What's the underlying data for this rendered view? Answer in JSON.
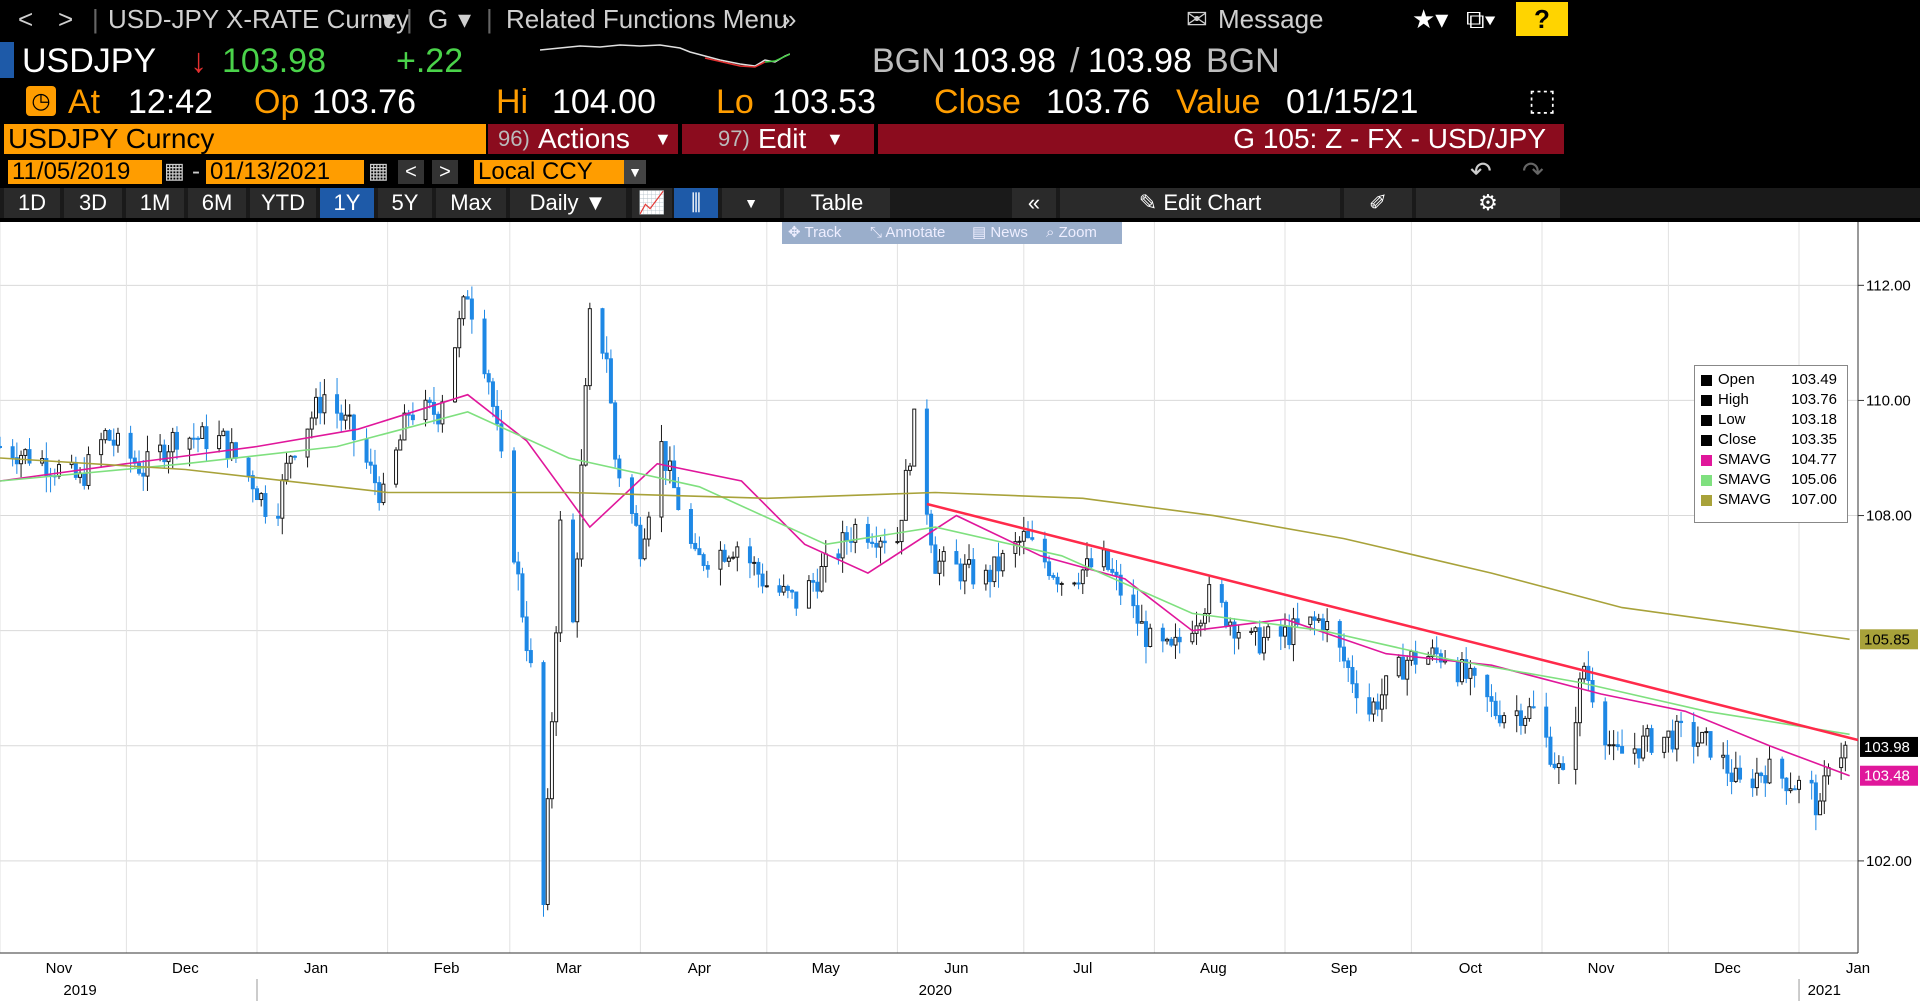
{
  "toolbar": {
    "back": "<",
    "forward": ">",
    "security_menu": "USD-JPY X-RATE Curncy",
    "function_menu": "G",
    "related_menu": "Related Functions Menu",
    "message": "Message",
    "help": "?"
  },
  "quote": {
    "ticker": "USDJPY",
    "last": "103.98",
    "change": "+.22",
    "source": "BGN",
    "bid": "103.98",
    "ask": "103.98",
    "source2": "BGN",
    "at_label": "At",
    "time": "12:42",
    "op_label": "Op",
    "open": "103.76",
    "hi_label": "Hi",
    "high": "104.00",
    "lo_label": "Lo",
    "low": "103.53",
    "close_label": "Close",
    "close": "103.76",
    "value_label": "Value",
    "value_date": "01/15/21"
  },
  "security_bar": {
    "security": "USDJPY Curncy",
    "actions_num": "96)",
    "actions": "Actions",
    "edit_num": "97)",
    "edit": "Edit",
    "page_title": "G 105: Z - FX - USD/JPY"
  },
  "date_range": {
    "start": "11/05/2019",
    "sep": "-",
    "end": "01/13/2021",
    "currency": "Local CCY"
  },
  "periods": [
    "1D",
    "3D",
    "1M",
    "6M",
    "YTD",
    "1Y",
    "5Y",
    "Max"
  ],
  "active_period": "1Y",
  "frequency": "Daily",
  "table_label": "Table",
  "edit_chart_label": "Edit Chart",
  "chart_tools": [
    "Track",
    "Annotate",
    "News",
    "Zoom"
  ],
  "colors": {
    "bull": "#1a1a1a",
    "bear": "#1e88e5",
    "sma_fast": "#e0179b",
    "sma_mid": "#7fe07f",
    "sma_slow": "#a8a23a",
    "trendline": "#ff2a4a",
    "orange": "#ff9d00",
    "header_red": "#8b0c1e"
  },
  "legend": [
    {
      "name": "Open",
      "value": "103.49",
      "color": "#000000"
    },
    {
      "name": "High",
      "value": "103.76",
      "color": "#000000"
    },
    {
      "name": "Low",
      "value": "103.18",
      "color": "#000000"
    },
    {
      "name": "Close",
      "value": "103.35",
      "color": "#000000"
    },
    {
      "name": "SMAVG",
      "value": "104.77",
      "color": "#e0179b"
    },
    {
      "name": "SMAVG",
      "value": "105.06",
      "color": "#7fe07f"
    },
    {
      "name": "SMAVG",
      "value": "107.00",
      "color": "#a8a23a"
    }
  ],
  "chart_data": {
    "type": "line",
    "title": "",
    "ylim": [
      100.4,
      113.1
    ],
    "y_ticks": [
      "112.00",
      "110.00",
      "108.00",
      "102.00"
    ],
    "x_ticks": [
      "Nov",
      "Dec",
      "Jan",
      "Feb",
      "Mar",
      "Apr",
      "May",
      "Jun",
      "Jul",
      "Aug",
      "Sep",
      "Oct",
      "Nov",
      "Dec",
      "Jan"
    ],
    "x_years": [
      "2019",
      "2020",
      "2021"
    ],
    "x_domain": [
      "2019-11-01",
      "2021-01-15"
    ],
    "price_labels": [
      {
        "value": 105.85,
        "text": "105.85",
        "color": "#a8a23a"
      },
      {
        "value": 103.98,
        "text": "103.98",
        "color": "#000000"
      },
      {
        "value": 103.48,
        "text": "103.48",
        "color": "#e0179b"
      }
    ],
    "series": [
      {
        "name": "USDJPY",
        "kind": "close_path",
        "points": [
          [
            "2019-11-01",
            109.2
          ],
          [
            "2019-11-10",
            109.0
          ],
          [
            "2019-11-20",
            108.6
          ],
          [
            "2019-11-26",
            109.4
          ],
          [
            "2019-12-05",
            108.8
          ],
          [
            "2019-12-13",
            109.4
          ],
          [
            "2019-12-24",
            109.3
          ],
          [
            "2019-12-31",
            108.6
          ],
          [
            "2020-01-05",
            107.9
          ],
          [
            "2020-01-09",
            109.1
          ],
          [
            "2020-01-17",
            110.1
          ],
          [
            "2020-01-23",
            109.5
          ],
          [
            "2020-01-31",
            108.3
          ],
          [
            "2020-02-06",
            109.8
          ],
          [
            "2020-02-13",
            109.8
          ],
          [
            "2020-02-20",
            111.9
          ],
          [
            "2020-02-25",
            110.4
          ],
          [
            "2020-03-02",
            107.4
          ],
          [
            "2020-03-06",
            105.3
          ],
          [
            "2020-03-09",
            101.2
          ],
          [
            "2020-03-13",
            107.8
          ],
          [
            "2020-03-16",
            106.1
          ],
          [
            "2020-03-20",
            111.4
          ],
          [
            "2020-03-24",
            110.8
          ],
          [
            "2020-03-26",
            109.0
          ],
          [
            "2020-04-01",
            107.5
          ],
          [
            "2020-04-06",
            109.2
          ],
          [
            "2020-04-14",
            107.2
          ],
          [
            "2020-04-24",
            107.5
          ],
          [
            "2020-05-01",
            106.8
          ],
          [
            "2020-05-08",
            106.5
          ],
          [
            "2020-05-15",
            107.1
          ],
          [
            "2020-05-22",
            107.8
          ],
          [
            "2020-06-01",
            107.6
          ],
          [
            "2020-06-05",
            109.6
          ],
          [
            "2020-06-10",
            107.2
          ],
          [
            "2020-06-22",
            106.9
          ],
          [
            "2020-07-01",
            107.6
          ],
          [
            "2020-07-10",
            106.9
          ],
          [
            "2020-07-20",
            107.2
          ],
          [
            "2020-07-31",
            105.8
          ],
          [
            "2020-08-05",
            105.6
          ],
          [
            "2020-08-14",
            106.6
          ],
          [
            "2020-08-24",
            105.8
          ],
          [
            "2020-08-31",
            105.9
          ],
          [
            "2020-09-10",
            106.2
          ],
          [
            "2020-09-21",
            104.6
          ],
          [
            "2020-09-30",
            105.5
          ],
          [
            "2020-10-09",
            105.6
          ],
          [
            "2020-10-21",
            104.6
          ],
          [
            "2020-10-30",
            104.6
          ],
          [
            "2020-11-06",
            103.4
          ],
          [
            "2020-11-11",
            105.4
          ],
          [
            "2020-11-18",
            103.8
          ],
          [
            "2020-11-27",
            104.1
          ],
          [
            "2020-12-04",
            104.2
          ],
          [
            "2020-12-11",
            104.0
          ],
          [
            "2020-12-18",
            103.3
          ],
          [
            "2020-12-24",
            103.6
          ],
          [
            "2021-01-04",
            103.2
          ],
          [
            "2021-01-06",
            102.8
          ],
          [
            "2021-01-08",
            103.8
          ],
          [
            "2021-01-13",
            103.98
          ]
        ]
      },
      {
        "name": "SMAVG",
        "kind": "line",
        "color_key": "sma_fast",
        "points": [
          [
            "2019-11-01",
            108.6
          ],
          [
            "2019-12-01",
            108.9
          ],
          [
            "2020-01-01",
            109.2
          ],
          [
            "2020-01-25",
            109.5
          ],
          [
            "2020-02-20",
            110.1
          ],
          [
            "2020-03-05",
            109.3
          ],
          [
            "2020-03-20",
            107.8
          ],
          [
            "2020-04-05",
            108.9
          ],
          [
            "2020-04-25",
            108.6
          ],
          [
            "2020-05-10",
            107.5
          ],
          [
            "2020-05-25",
            107.0
          ],
          [
            "2020-06-15",
            108.0
          ],
          [
            "2020-07-05",
            107.3
          ],
          [
            "2020-07-25",
            106.9
          ],
          [
            "2020-08-10",
            106.0
          ],
          [
            "2020-09-01",
            106.2
          ],
          [
            "2020-09-25",
            105.6
          ],
          [
            "2020-10-20",
            105.4
          ],
          [
            "2020-11-15",
            104.9
          ],
          [
            "2020-12-05",
            104.6
          ],
          [
            "2020-12-25",
            104.0
          ],
          [
            "2021-01-13",
            103.48
          ]
        ]
      },
      {
        "name": "SMAVG",
        "kind": "line",
        "color_key": "sma_mid",
        "points": [
          [
            "2019-11-01",
            108.6
          ],
          [
            "2019-12-15",
            108.9
          ],
          [
            "2020-01-20",
            109.2
          ],
          [
            "2020-02-20",
            109.8
          ],
          [
            "2020-03-15",
            109.0
          ],
          [
            "2020-04-15",
            108.5
          ],
          [
            "2020-05-15",
            107.5
          ],
          [
            "2020-06-10",
            107.8
          ],
          [
            "2020-07-10",
            107.3
          ],
          [
            "2020-08-10",
            106.3
          ],
          [
            "2020-09-10",
            106.0
          ],
          [
            "2020-10-10",
            105.5
          ],
          [
            "2020-11-10",
            105.1
          ],
          [
            "2020-12-10",
            104.6
          ],
          [
            "2021-01-13",
            104.2
          ]
        ]
      },
      {
        "name": "SMAVG",
        "kind": "line",
        "color_key": "sma_slow",
        "points": [
          [
            "2019-11-01",
            109.0
          ],
          [
            "2019-12-15",
            108.8
          ],
          [
            "2020-02-01",
            108.4
          ],
          [
            "2020-03-15",
            108.4
          ],
          [
            "2020-05-01",
            108.3
          ],
          [
            "2020-06-10",
            108.4
          ],
          [
            "2020-07-15",
            108.3
          ],
          [
            "2020-08-15",
            108.0
          ],
          [
            "2020-09-15",
            107.6
          ],
          [
            "2020-10-20",
            107.0
          ],
          [
            "2020-11-20",
            106.4
          ],
          [
            "2020-12-20",
            106.1
          ],
          [
            "2021-01-13",
            105.85
          ]
        ]
      },
      {
        "name": "",
        "kind": "trendline",
        "color_key": "trendline",
        "points": [
          [
            "2020-06-08",
            108.2
          ],
          [
            "2021-01-15",
            104.1
          ]
        ]
      }
    ]
  }
}
